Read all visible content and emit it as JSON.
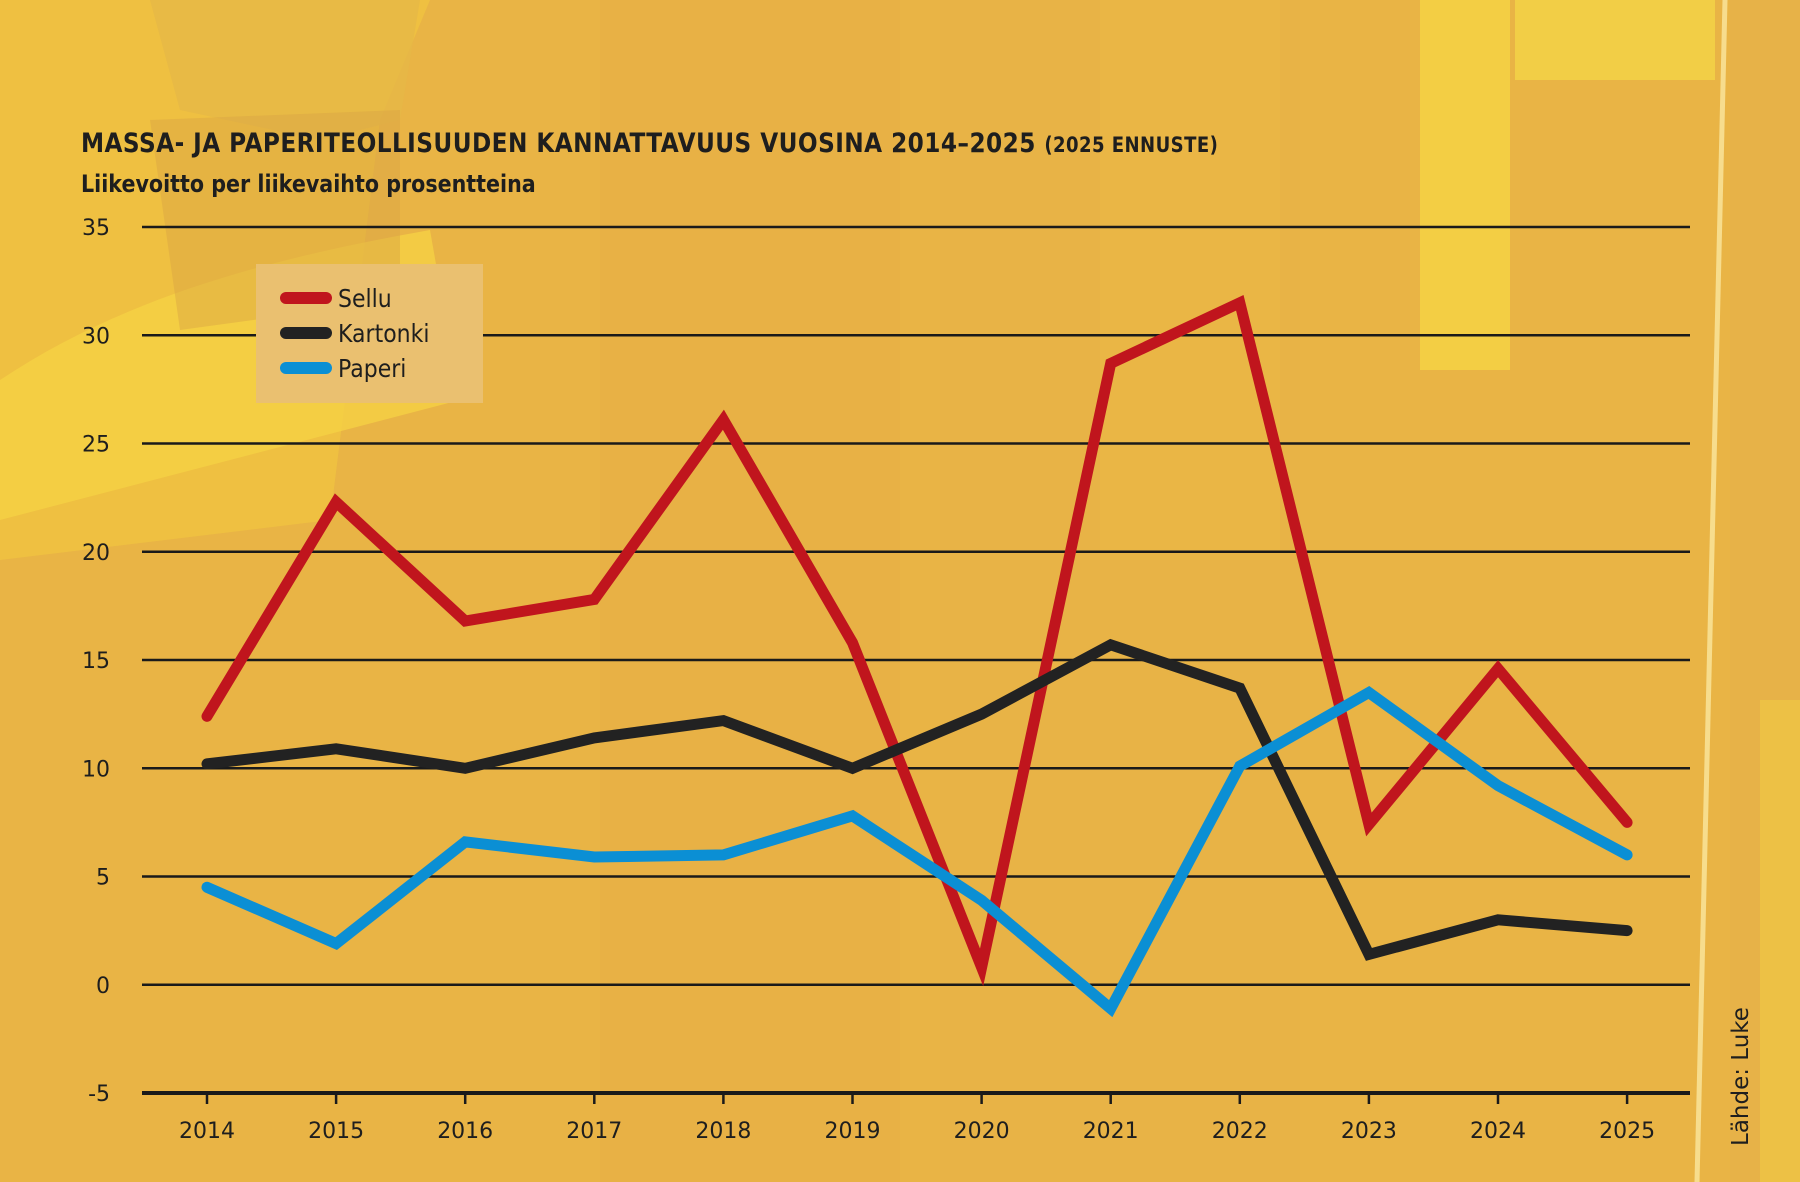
{
  "colors": {
    "background": "#e9b445",
    "sellu": "#c0151d",
    "kartonki": "#222222",
    "paperi": "#0b8fd4",
    "gridline": "#1a1a1a",
    "legend_bg": "#eac070"
  },
  "chart_data": {
    "type": "line",
    "title": "MASSA- JA PAPERITEOLLISUUDEN KANNATTAVUUS VUOSINA 2014–2025",
    "title_suffix": "(2025 ENNUSTE)",
    "subtitle": "Liikevoitto per liikevaihto prosentteina",
    "xlabel": "",
    "ylabel": "",
    "x": [
      "2014",
      "2015",
      "2016",
      "2017",
      "2018",
      "2019",
      "2020",
      "2021",
      "2022",
      "2023",
      "2024",
      "2025"
    ],
    "ylim": [
      -5,
      35
    ],
    "yticks": [
      "35",
      "30",
      "25",
      "20",
      "15",
      "10",
      "5",
      "0",
      "-5"
    ],
    "ytick_values": [
      35,
      30,
      25,
      20,
      15,
      10,
      5,
      0,
      -5
    ],
    "grid": true,
    "legend_position": "top-left",
    "series": [
      {
        "name": "Sellu",
        "color_key": "sellu",
        "values": [
          12.4,
          22.3,
          16.8,
          17.8,
          26.1,
          15.8,
          0.8,
          28.7,
          31.5,
          7.4,
          14.6,
          7.5
        ]
      },
      {
        "name": "Kartonki",
        "color_key": "kartonki",
        "values": [
          10.2,
          10.9,
          10.0,
          11.4,
          12.2,
          10.0,
          12.5,
          15.7,
          13.7,
          1.4,
          3.0,
          2.5
        ]
      },
      {
        "name": "Paperi",
        "color_key": "paperi",
        "values": [
          4.5,
          1.9,
          6.6,
          5.9,
          6.0,
          7.8,
          3.9,
          -1.1,
          10.1,
          13.5,
          9.2,
          6.0
        ]
      }
    ],
    "source": "Lähde: Luke"
  }
}
